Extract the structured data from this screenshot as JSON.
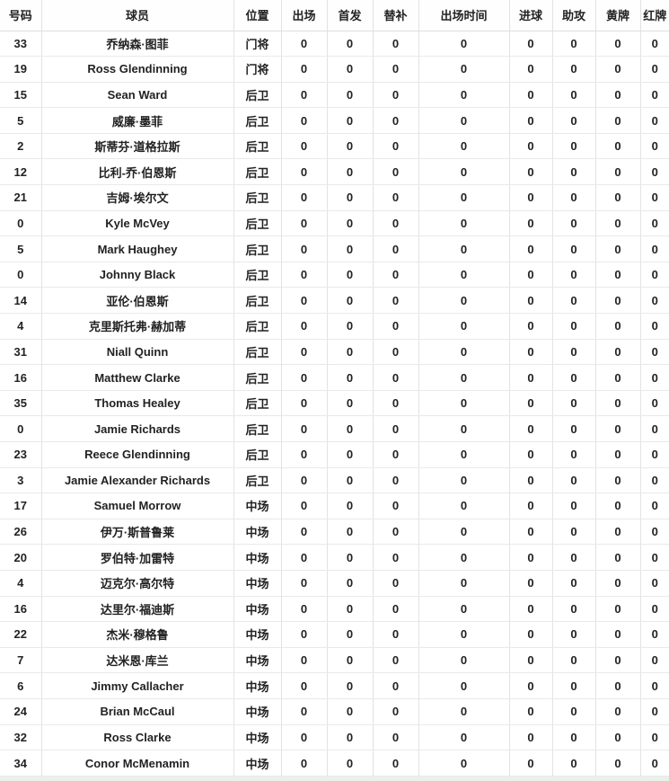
{
  "colors": {
    "text": "#222222",
    "cell_background": "#ffffff",
    "border_vertical": "#e2e2e2",
    "border_horizontal": "#e9e9e9",
    "footer_strip": "#e9f2e9"
  },
  "table": {
    "headers": [
      "号码",
      "球员",
      "位置",
      "出场",
      "首发",
      "替补",
      "出场时间",
      "进球",
      "助攻",
      "黄牌",
      "红牌"
    ],
    "column_keys": [
      "number",
      "player",
      "position",
      "appearances",
      "starts",
      "substitute",
      "minutes",
      "goals",
      "assists",
      "yellow-card",
      "red-card"
    ],
    "rows": [
      [
        "33",
        "乔纳森·图菲",
        "门将",
        "0",
        "0",
        "0",
        "0",
        "0",
        "0",
        "0",
        "0"
      ],
      [
        "19",
        "Ross Glendinning",
        "门将",
        "0",
        "0",
        "0",
        "0",
        "0",
        "0",
        "0",
        "0"
      ],
      [
        "15",
        "Sean Ward",
        "后卫",
        "0",
        "0",
        "0",
        "0",
        "0",
        "0",
        "0",
        "0"
      ],
      [
        "5",
        "威廉·墨菲",
        "后卫",
        "0",
        "0",
        "0",
        "0",
        "0",
        "0",
        "0",
        "0"
      ],
      [
        "2",
        "斯蒂芬·道格拉斯",
        "后卫",
        "0",
        "0",
        "0",
        "0",
        "0",
        "0",
        "0",
        "0"
      ],
      [
        "12",
        "比利-乔·伯恩斯",
        "后卫",
        "0",
        "0",
        "0",
        "0",
        "0",
        "0",
        "0",
        "0"
      ],
      [
        "21",
        "吉姆·埃尔文",
        "后卫",
        "0",
        "0",
        "0",
        "0",
        "0",
        "0",
        "0",
        "0"
      ],
      [
        "0",
        "Kyle McVey",
        "后卫",
        "0",
        "0",
        "0",
        "0",
        "0",
        "0",
        "0",
        "0"
      ],
      [
        "5",
        "Mark Haughey",
        "后卫",
        "0",
        "0",
        "0",
        "0",
        "0",
        "0",
        "0",
        "0"
      ],
      [
        "0",
        "Johnny Black",
        "后卫",
        "0",
        "0",
        "0",
        "0",
        "0",
        "0",
        "0",
        "0"
      ],
      [
        "14",
        "亚伦·伯恩斯",
        "后卫",
        "0",
        "0",
        "0",
        "0",
        "0",
        "0",
        "0",
        "0"
      ],
      [
        "4",
        "克里斯托弗·赫加蒂",
        "后卫",
        "0",
        "0",
        "0",
        "0",
        "0",
        "0",
        "0",
        "0"
      ],
      [
        "31",
        "Niall Quinn",
        "后卫",
        "0",
        "0",
        "0",
        "0",
        "0",
        "0",
        "0",
        "0"
      ],
      [
        "16",
        "Matthew Clarke",
        "后卫",
        "0",
        "0",
        "0",
        "0",
        "0",
        "0",
        "0",
        "0"
      ],
      [
        "35",
        "Thomas Healey",
        "后卫",
        "0",
        "0",
        "0",
        "0",
        "0",
        "0",
        "0",
        "0"
      ],
      [
        "0",
        "Jamie Richards",
        "后卫",
        "0",
        "0",
        "0",
        "0",
        "0",
        "0",
        "0",
        "0"
      ],
      [
        "23",
        "Reece Glendinning",
        "后卫",
        "0",
        "0",
        "0",
        "0",
        "0",
        "0",
        "0",
        "0"
      ],
      [
        "3",
        "Jamie Alexander Richards",
        "后卫",
        "0",
        "0",
        "0",
        "0",
        "0",
        "0",
        "0",
        "0"
      ],
      [
        "17",
        "Samuel Morrow",
        "中场",
        "0",
        "0",
        "0",
        "0",
        "0",
        "0",
        "0",
        "0"
      ],
      [
        "26",
        "伊万·斯普鲁莱",
        "中场",
        "0",
        "0",
        "0",
        "0",
        "0",
        "0",
        "0",
        "0"
      ],
      [
        "20",
        "罗伯特·加雷特",
        "中场",
        "0",
        "0",
        "0",
        "0",
        "0",
        "0",
        "0",
        "0"
      ],
      [
        "4",
        "迈克尔·高尔特",
        "中场",
        "0",
        "0",
        "0",
        "0",
        "0",
        "0",
        "0",
        "0"
      ],
      [
        "16",
        "达里尔·福迪斯",
        "中场",
        "0",
        "0",
        "0",
        "0",
        "0",
        "0",
        "0",
        "0"
      ],
      [
        "22",
        "杰米·穆格鲁",
        "中场",
        "0",
        "0",
        "0",
        "0",
        "0",
        "0",
        "0",
        "0"
      ],
      [
        "7",
        "达米恩·库兰",
        "中场",
        "0",
        "0",
        "0",
        "0",
        "0",
        "0",
        "0",
        "0"
      ],
      [
        "6",
        "Jimmy Callacher",
        "中场",
        "0",
        "0",
        "0",
        "0",
        "0",
        "0",
        "0",
        "0"
      ],
      [
        "24",
        "Brian McCaul",
        "中场",
        "0",
        "0",
        "0",
        "0",
        "0",
        "0",
        "0",
        "0"
      ],
      [
        "32",
        "Ross Clarke",
        "中场",
        "0",
        "0",
        "0",
        "0",
        "0",
        "0",
        "0",
        "0"
      ],
      [
        "34",
        "Conor McMenamin",
        "中场",
        "0",
        "0",
        "0",
        "0",
        "0",
        "0",
        "0",
        "0"
      ]
    ]
  }
}
